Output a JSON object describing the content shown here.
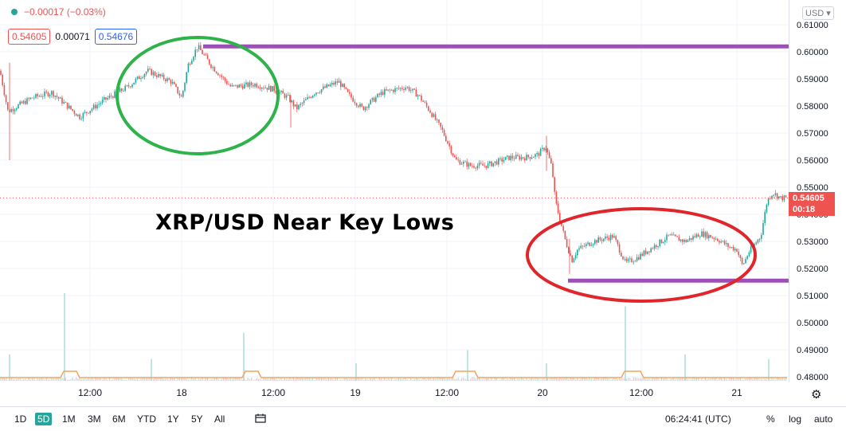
{
  "header": {
    "change": "−0.00017 (−0.03%)",
    "bid": "0.54605",
    "spread": "0.00071",
    "ask": "0.54676",
    "currency": "USD"
  },
  "last_price": {
    "price": "0.54605",
    "countdown": "00:18"
  },
  "annotation": "XRP/USD Near Key Lows",
  "timeframes": [
    "1D",
    "5D",
    "1M",
    "3M",
    "6M",
    "YTD",
    "1Y",
    "5Y",
    "All"
  ],
  "active_timeframe": "5D",
  "clock": "06:24:41 (UTC)",
  "options": {
    "percent": "%",
    "log": "log",
    "auto": "auto"
  },
  "icons": [
    "status-dot-icon",
    "calendar-range-icon",
    "gear-icon"
  ],
  "colors": {
    "up": "#26a69a",
    "down": "#ef5350",
    "ask": "#2962ff",
    "resistance_line": "#9c4fb5",
    "support_line": "#9c4fb5",
    "green_circle": "#2db34a",
    "red_circle": "#e0262b",
    "volume_ma": "#f2a55f"
  },
  "chart_data": {
    "type": "candlestick",
    "symbol": "XRP/USD",
    "y_axis": {
      "range": [
        0.48,
        0.61
      ],
      "ticks": [
        "0.61000",
        "0.60000",
        "0.59000",
        "0.58000",
        "0.57000",
        "0.56000",
        "0.55000",
        "0.54000",
        "0.53000",
        "0.52000",
        "0.51000",
        "0.50000",
        "0.49000",
        "0.48000"
      ]
    },
    "x_axis": {
      "ticks": [
        "12:00",
        "18",
        "12:00",
        "19",
        "12:00",
        "20",
        "12:00",
        "21"
      ]
    },
    "price_path": [
      [
        0,
        0.593
      ],
      [
        10,
        0.578
      ],
      [
        40,
        0.583
      ],
      [
        65,
        0.585
      ],
      [
        100,
        0.576
      ],
      [
        130,
        0.582
      ],
      [
        160,
        0.587
      ],
      [
        185,
        0.593
      ],
      [
        200,
        0.591
      ],
      [
        215,
        0.589
      ],
      [
        228,
        0.583
      ],
      [
        236,
        0.595
      ],
      [
        248,
        0.602
      ],
      [
        265,
        0.595
      ],
      [
        290,
        0.587
      ],
      [
        320,
        0.588
      ],
      [
        345,
        0.586
      ],
      [
        362,
        0.583
      ],
      [
        372,
        0.579
      ],
      [
        395,
        0.585
      ],
      [
        425,
        0.589
      ],
      [
        438,
        0.584
      ],
      [
        455,
        0.579
      ],
      [
        480,
        0.585
      ],
      [
        510,
        0.587
      ],
      [
        525,
        0.584
      ],
      [
        540,
        0.578
      ],
      [
        555,
        0.571
      ],
      [
        572,
        0.56
      ],
      [
        590,
        0.558
      ],
      [
        610,
        0.558
      ],
      [
        640,
        0.561
      ],
      [
        660,
        0.561
      ],
      [
        675,
        0.562
      ],
      [
        685,
        0.565
      ],
      [
        693,
        0.557
      ],
      [
        697,
        0.545
      ],
      [
        703,
        0.538
      ],
      [
        710,
        0.53
      ],
      [
        718,
        0.523
      ],
      [
        725,
        0.527
      ],
      [
        745,
        0.53
      ],
      [
        770,
        0.532
      ],
      [
        785,
        0.522
      ],
      [
        800,
        0.524
      ],
      [
        820,
        0.528
      ],
      [
        840,
        0.532
      ],
      [
        860,
        0.53
      ],
      [
        880,
        0.533
      ],
      [
        900,
        0.531
      ],
      [
        915,
        0.528
      ],
      [
        925,
        0.527
      ],
      [
        932,
        0.521
      ],
      [
        940,
        0.526
      ],
      [
        955,
        0.532
      ],
      [
        963,
        0.545
      ],
      [
        970,
        0.548
      ],
      [
        980,
        0.546
      ],
      [
        988,
        0.546
      ]
    ],
    "resistance_level": 0.602,
    "support_level": 0.5155,
    "current_price": 0.54605,
    "volume_spikes": [
      {
        "x": 12,
        "height": 0.3
      },
      {
        "x": 81,
        "height": 1.0
      },
      {
        "x": 190,
        "height": 0.25
      },
      {
        "x": 306,
        "height": 0.55
      },
      {
        "x": 447,
        "height": 0.2
      },
      {
        "x": 587,
        "height": 0.35
      },
      {
        "x": 686,
        "height": 0.2
      },
      {
        "x": 785,
        "height": 0.85
      },
      {
        "x": 860,
        "height": 0.3
      },
      {
        "x": 965,
        "height": 0.25
      }
    ],
    "volume_ma_bumps": [
      {
        "x0": 78,
        "x1": 98
      },
      {
        "x0": 305,
        "x1": 325
      },
      {
        "x0": 570,
        "x1": 600
      },
      {
        "x0": 780,
        "x1": 805
      }
    ]
  }
}
